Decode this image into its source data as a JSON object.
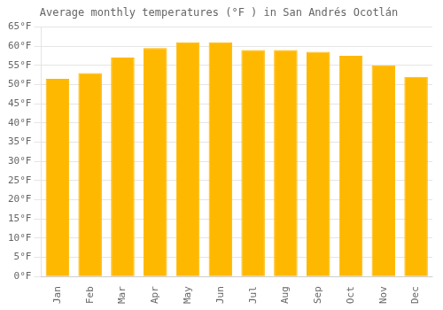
{
  "chart_data": {
    "type": "bar",
    "title": "Average monthly temperatures (°F ) in San Andrés Ocotlán",
    "categories": [
      "Jan",
      "Feb",
      "Mar",
      "Apr",
      "May",
      "Jun",
      "Jul",
      "Aug",
      "Sep",
      "Oct",
      "Nov",
      "Dec"
    ],
    "values": [
      51.5,
      53.0,
      57.0,
      59.5,
      61.0,
      61.0,
      59.0,
      59.0,
      58.5,
      57.5,
      55.0,
      52.0
    ],
    "color": "#FFB800",
    "ylim": [
      0,
      65
    ],
    "yticks": [
      {
        "value": 0,
        "label": "0°F"
      },
      {
        "value": 5,
        "label": "5°F"
      },
      {
        "value": 10,
        "label": "10°F"
      },
      {
        "value": 15,
        "label": "15°F"
      },
      {
        "value": 20,
        "label": "20°F"
      },
      {
        "value": 25,
        "label": "25°F"
      },
      {
        "value": 30,
        "label": "30°F"
      },
      {
        "value": 35,
        "label": "35°F"
      },
      {
        "value": 40,
        "label": "40°F"
      },
      {
        "value": 45,
        "label": "45°F"
      },
      {
        "value": 50,
        "label": "50°F"
      },
      {
        "value": 55,
        "label": "55°F"
      },
      {
        "value": 60,
        "label": "60°F"
      },
      {
        "value": 65,
        "label": "65°F"
      }
    ],
    "grid": true
  }
}
